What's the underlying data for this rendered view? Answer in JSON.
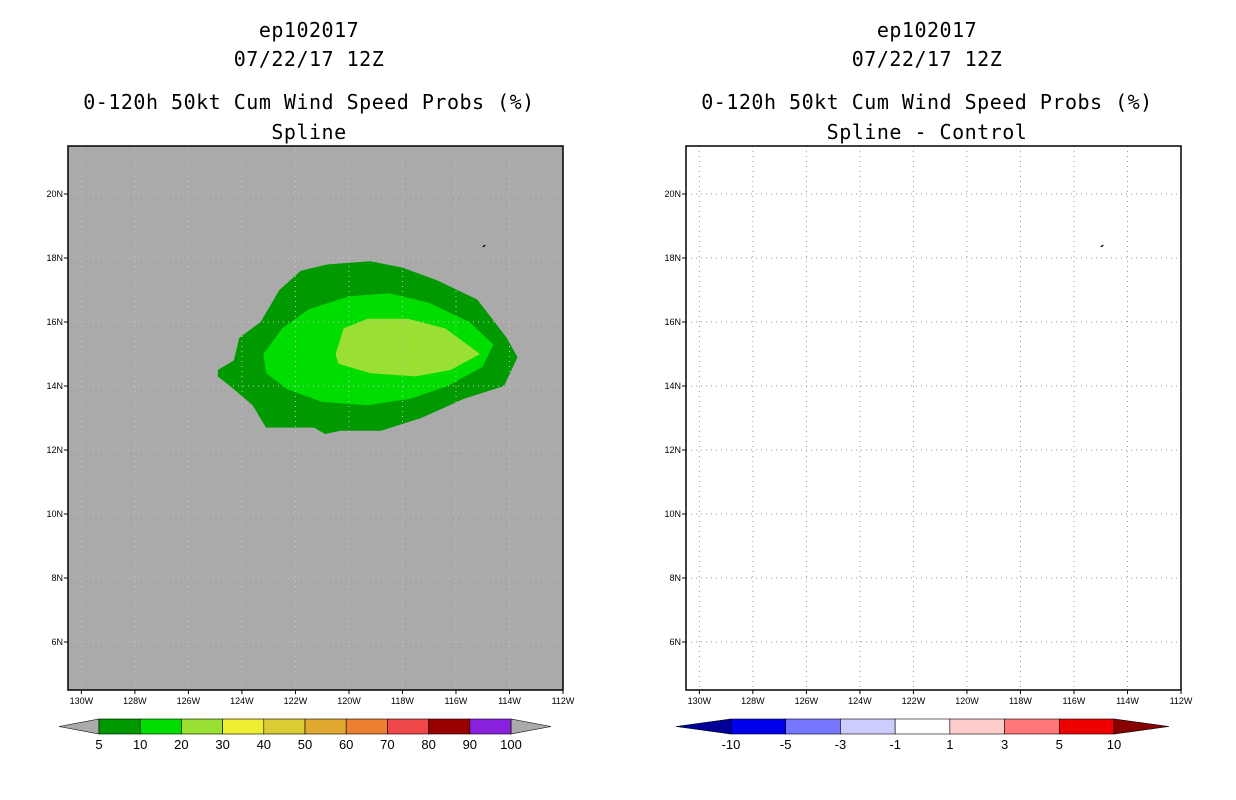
{
  "chart_data": [
    {
      "type": "contour-map",
      "title_lines": [
        "ep102017",
        "07/22/17 12Z",
        "0-120h 50kt Cum Wind Speed Probs (%)",
        "Spline"
      ],
      "x_axis": {
        "ticks": [
          "130W",
          "128W",
          "126W",
          "124W",
          "122W",
          "120W",
          "118W",
          "116W",
          "114W",
          "112W"
        ],
        "lon_values": [
          -130,
          -128,
          -126,
          -124,
          -122,
          -120,
          -118,
          -116,
          -114,
          -112
        ]
      },
      "y_axis": {
        "ticks": [
          "6N",
          "8N",
          "10N",
          "12N",
          "14N",
          "16N",
          "18N",
          "20N"
        ],
        "lat_values": [
          6,
          8,
          10,
          12,
          14,
          16,
          18,
          20
        ]
      },
      "lon_range": [
        -130.5,
        -112
      ],
      "lat_range": [
        4.5,
        21.5
      ],
      "background_color": "#aaaaaa",
      "contours": [
        {
          "level": "5-10",
          "color": "#009900",
          "points": [
            [
              -124.9,
              14.5
            ],
            [
              -124.3,
              14.8
            ],
            [
              -124.1,
              15.5
            ],
            [
              -123.3,
              16.0
            ],
            [
              -122.6,
              17.0
            ],
            [
              -121.8,
              17.6
            ],
            [
              -120.8,
              17.8
            ],
            [
              -119.2,
              17.9
            ],
            [
              -118.0,
              17.7
            ],
            [
              -116.7,
              17.3
            ],
            [
              -115.2,
              16.7
            ],
            [
              -114.1,
              15.5
            ],
            [
              -113.7,
              14.9
            ],
            [
              -114.2,
              14.0
            ],
            [
              -115.7,
              13.6
            ],
            [
              -117.3,
              13.0
            ],
            [
              -118.8,
              12.6
            ],
            [
              -120.3,
              12.6
            ],
            [
              -120.9,
              12.5
            ],
            [
              -121.3,
              12.7
            ],
            [
              -122.5,
              12.7
            ],
            [
              -123.1,
              12.7
            ],
            [
              -123.6,
              13.4
            ],
            [
              -124.3,
              13.9
            ],
            [
              -124.9,
              14.3
            ]
          ]
        },
        {
          "level": "10-20",
          "color": "#00dd00",
          "points": [
            [
              -123.2,
              15.0
            ],
            [
              -122.5,
              15.8
            ],
            [
              -121.5,
              16.4
            ],
            [
              -120.0,
              16.8
            ],
            [
              -118.5,
              16.9
            ],
            [
              -117.0,
              16.6
            ],
            [
              -115.5,
              16.0
            ],
            [
              -114.6,
              15.3
            ],
            [
              -115.0,
              14.6
            ],
            [
              -116.3,
              14.0
            ],
            [
              -117.7,
              13.6
            ],
            [
              -119.3,
              13.4
            ],
            [
              -121.0,
              13.5
            ],
            [
              -122.3,
              13.9
            ],
            [
              -123.1,
              14.4
            ]
          ]
        },
        {
          "level": "20-30",
          "color": "#99e033",
          "points": [
            [
              -120.5,
              15.0
            ],
            [
              -120.2,
              15.8
            ],
            [
              -119.3,
              16.1
            ],
            [
              -117.8,
              16.1
            ],
            [
              -116.4,
              15.8
            ],
            [
              -115.1,
              15.0
            ],
            [
              -116.2,
              14.5
            ],
            [
              -117.5,
              14.3
            ],
            [
              -119.2,
              14.4
            ],
            [
              -120.4,
              14.7
            ]
          ]
        }
      ],
      "colorbar": {
        "labels": [
          "5",
          "10",
          "20",
          "30",
          "40",
          "50",
          "60",
          "70",
          "80",
          "90",
          "100"
        ],
        "colors": [
          "#009900",
          "#00dd00",
          "#99e033",
          "#eeee33",
          "#dccc33",
          "#e0a830",
          "#ea8030",
          "#f04848",
          "#990000",
          "#8820dd"
        ],
        "end_colors": [
          "#aaaaaa",
          "#aaaaaa"
        ]
      }
    },
    {
      "type": "contour-map",
      "title_lines": [
        "ep102017",
        "07/22/17 12Z",
        "0-120h 50kt Cum Wind Speed Probs (%)",
        "Spline - Control"
      ],
      "x_axis": {
        "ticks": [
          "130W",
          "128W",
          "126W",
          "124W",
          "122W",
          "120W",
          "118W",
          "116W",
          "114W",
          "112W"
        ],
        "lon_values": [
          -130,
          -128,
          -126,
          -124,
          -122,
          -120,
          -118,
          -116,
          -114,
          -112
        ]
      },
      "y_axis": {
        "ticks": [
          "6N",
          "8N",
          "10N",
          "12N",
          "14N",
          "16N",
          "18N",
          "20N"
        ],
        "lat_values": [
          6,
          8,
          10,
          12,
          14,
          16,
          18,
          20
        ]
      },
      "lon_range": [
        -130.5,
        -112
      ],
      "lat_range": [
        4.5,
        21.5
      ],
      "background_color": "#ffffff",
      "grid": true,
      "contours": [],
      "colorbar": {
        "labels": [
          "-10",
          "-5",
          "-3",
          "-1",
          "1",
          "3",
          "5",
          "10"
        ],
        "colors": [
          "#0000ee",
          "#7777ff",
          "#ccccff",
          "#ffffff",
          "#ffcccc",
          "#ff7777",
          "#ee0000"
        ],
        "end_colors": [
          "#000099",
          "#880000"
        ]
      }
    }
  ]
}
